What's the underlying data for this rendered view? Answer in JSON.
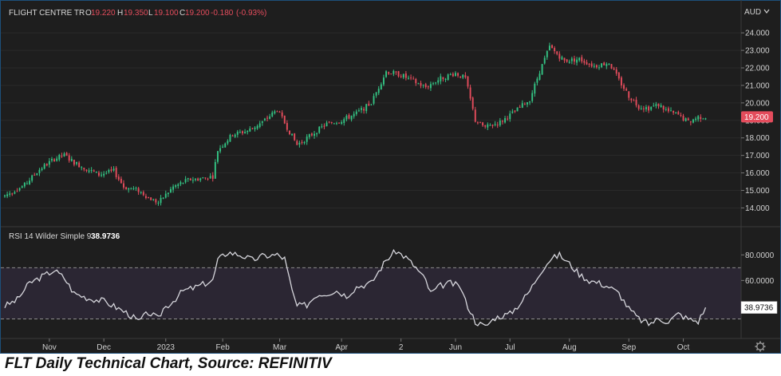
{
  "chart_data": [
    {
      "type": "candlestick",
      "instrument": "FLIGHT CENTRE TR",
      "ohlc_header": {
        "o_label": "O",
        "o": "19.220",
        "h_label": "H",
        "h": "19.350",
        "l_label": "L",
        "l": "19.100",
        "c_label": "C",
        "c": "19.200",
        "change": "-0.180",
        "change_pct": "(-0.93%)"
      },
      "currency": "AUD",
      "last_price_label": "19.200",
      "last_price": 19.2,
      "ylim": [
        13.2,
        24.6
      ],
      "yticks": [
        "24.000",
        "23.000",
        "22.000",
        "21.000",
        "20.000",
        "19.000",
        "18.000",
        "17.000",
        "16.000",
        "15.000",
        "14.000"
      ],
      "ytick_values": [
        24,
        23,
        22,
        21,
        20,
        19,
        18,
        17,
        16,
        15,
        14
      ],
      "xlabels": [
        "Nov",
        "Dec",
        "2023",
        "Feb",
        "Mar",
        "Apr",
        "2",
        "Jun",
        "Jul",
        "Aug",
        "Sep",
        "Oct"
      ],
      "xlabel_day_index": [
        18,
        40,
        65,
        88,
        111,
        136,
        160,
        182,
        204,
        228,
        252,
        274
      ],
      "trading_days": 289,
      "close_path": [
        [
          0,
          14.7
        ],
        [
          8,
          15.3
        ],
        [
          14,
          16.2
        ],
        [
          20,
          16.8
        ],
        [
          24,
          17.0
        ],
        [
          28,
          16.6
        ],
        [
          32,
          16.3
        ],
        [
          38,
          15.9
        ],
        [
          44,
          16.1
        ],
        [
          48,
          15.2
        ],
        [
          54,
          15.0
        ],
        [
          58,
          14.6
        ],
        [
          62,
          14.3
        ],
        [
          68,
          15.2
        ],
        [
          74,
          15.6
        ],
        [
          80,
          15.7
        ],
        [
          84,
          15.8
        ],
        [
          86,
          17.3
        ],
        [
          92,
          18.2
        ],
        [
          98,
          18.4
        ],
        [
          104,
          18.9
        ],
        [
          110,
          19.6
        ],
        [
          114,
          18.6
        ],
        [
          118,
          17.6
        ],
        [
          124,
          18.2
        ],
        [
          130,
          18.8
        ],
        [
          136,
          19.0
        ],
        [
          142,
          19.4
        ],
        [
          148,
          20.0
        ],
        [
          154,
          21.8
        ],
        [
          160,
          21.6
        ],
        [
          164,
          21.3
        ],
        [
          170,
          20.9
        ],
        [
          176,
          21.4
        ],
        [
          182,
          21.7
        ],
        [
          186,
          21.4
        ],
        [
          190,
          19.0
        ],
        [
          194,
          18.6
        ],
        [
          200,
          18.9
        ],
        [
          206,
          19.5
        ],
        [
          212,
          20.2
        ],
        [
          216,
          21.8
        ],
        [
          220,
          23.2
        ],
        [
          223,
          22.8
        ],
        [
          226,
          22.4
        ],
        [
          232,
          22.5
        ],
        [
          238,
          22.1
        ],
        [
          244,
          22.3
        ],
        [
          248,
          21.3
        ],
        [
          252,
          20.4
        ],
        [
          256,
          19.8
        ],
        [
          260,
          19.7
        ],
        [
          264,
          19.9
        ],
        [
          268,
          19.5
        ],
        [
          272,
          19.3
        ],
        [
          276,
          18.9
        ],
        [
          280,
          19.2
        ],
        [
          283,
          19.2
        ]
      ],
      "candle_seed": 7
    },
    {
      "type": "line",
      "indicator_label": "RSI 14 Wilder Simple 9",
      "current_value": "38.9736",
      "current": 38.9736,
      "ylim": [
        16,
        92
      ],
      "yticks": [
        "80.0000",
        "60.0000"
      ],
      "ytick_values": [
        80,
        60
      ],
      "bands": [
        70,
        30
      ],
      "rsi_path": [
        [
          0,
          40
        ],
        [
          5,
          45
        ],
        [
          10,
          58
        ],
        [
          15,
          63
        ],
        [
          20,
          68
        ],
        [
          24,
          62
        ],
        [
          28,
          50
        ],
        [
          34,
          46
        ],
        [
          40,
          44
        ],
        [
          46,
          38
        ],
        [
          50,
          34
        ],
        [
          54,
          28
        ],
        [
          58,
          35
        ],
        [
          62,
          30
        ],
        [
          64,
          38
        ],
        [
          68,
          44
        ],
        [
          72,
          52
        ],
        [
          76,
          54
        ],
        [
          80,
          57
        ],
        [
          84,
          60
        ],
        [
          86,
          76
        ],
        [
          90,
          82
        ],
        [
          95,
          80
        ],
        [
          100,
          76
        ],
        [
          104,
          79
        ],
        [
          110,
          80
        ],
        [
          113,
          77
        ],
        [
          116,
          52
        ],
        [
          118,
          40
        ],
        [
          122,
          41
        ],
        [
          126,
          49
        ],
        [
          130,
          50
        ],
        [
          134,
          52
        ],
        [
          138,
          48
        ],
        [
          142,
          55
        ],
        [
          148,
          58
        ],
        [
          154,
          76
        ],
        [
          158,
          83
        ],
        [
          162,
          78
        ],
        [
          166,
          70
        ],
        [
          170,
          60
        ],
        [
          172,
          50
        ],
        [
          176,
          56
        ],
        [
          180,
          58
        ],
        [
          184,
          55
        ],
        [
          186,
          44
        ],
        [
          190,
          28
        ],
        [
          194,
          24
        ],
        [
          198,
          31
        ],
        [
          204,
          34
        ],
        [
          208,
          42
        ],
        [
          212,
          52
        ],
        [
          216,
          66
        ],
        [
          220,
          76
        ],
        [
          224,
          80
        ],
        [
          228,
          73
        ],
        [
          232,
          65
        ],
        [
          236,
          60
        ],
        [
          240,
          58
        ],
        [
          244,
          55
        ],
        [
          248,
          50
        ],
        [
          252,
          38
        ],
        [
          256,
          30
        ],
        [
          260,
          26
        ],
        [
          264,
          30
        ],
        [
          268,
          28
        ],
        [
          272,
          34
        ],
        [
          276,
          30
        ],
        [
          280,
          28
        ],
        [
          283,
          39
        ]
      ],
      "rsi_seed": 3
    }
  ],
  "caption": "FLT Daily Technical Chart, Source: REFINITIV",
  "colors": {
    "background": "#1e1e1e",
    "up": "#33c283",
    "down": "#e44c5c",
    "rsi_line": "#d6d6dc",
    "rsi_band_fill": "#2b2633",
    "grid": "#2a2a2a",
    "frame_border": "#1c4f7a"
  },
  "icons": {
    "settings": "gear-icon"
  }
}
